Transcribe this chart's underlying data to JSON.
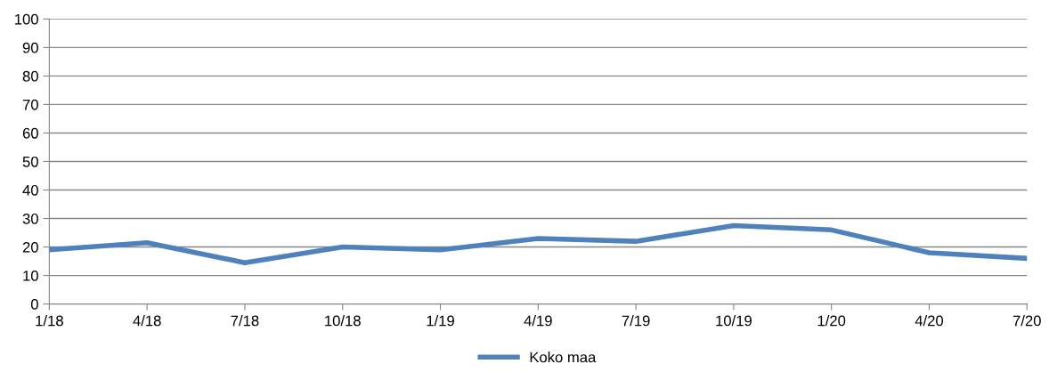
{
  "chart_data": {
    "type": "line",
    "categories": [
      "1/18",
      "4/18",
      "7/18",
      "10/18",
      "1/19",
      "4/19",
      "7/19",
      "10/19",
      "1/20",
      "4/20",
      "7/20"
    ],
    "series": [
      {
        "name": "Koko maa",
        "color": "#4f81bd",
        "values": [
          19,
          21.5,
          14.5,
          20,
          19,
          23,
          22,
          27.5,
          26,
          18,
          16
        ]
      }
    ],
    "ylim": [
      0,
      100
    ],
    "yticks": [
      0,
      10,
      20,
      30,
      40,
      50,
      60,
      70,
      80,
      90,
      100
    ],
    "grid": "y",
    "legend": "bottom",
    "marker": "none",
    "line_style": "solid"
  }
}
